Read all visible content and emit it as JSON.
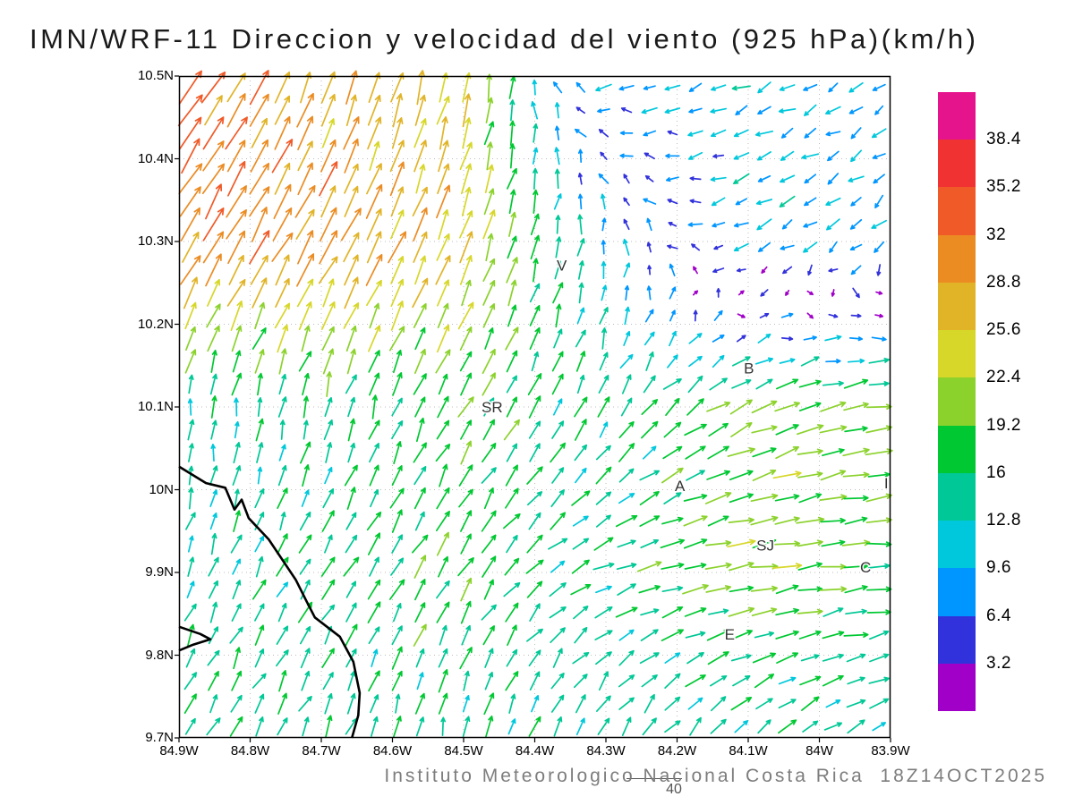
{
  "title": "IMN/WRF-11 Direccion y velocidad del viento (925 hPa)(km/h)",
  "footer": {
    "caption": "Instituto Meteorologico Nacional Costa Rica  18Z14OCT2025",
    "reference_vector_label": "40"
  },
  "chart_data": {
    "type": "quiver",
    "title": "IMN/WRF-11 Direccion y velocidad del viento (925 hPa)(km/h)",
    "variable": "wind direction and speed",
    "level": "925 hPa",
    "units": "km/h",
    "x_axis": {
      "ticks": [
        "84.9W",
        "84.8W",
        "84.7W",
        "84.6W",
        "84.5W",
        "84.4W",
        "84.3W",
        "84.2W",
        "84.1W",
        "84W",
        "83.9W"
      ]
    },
    "y_axis": {
      "ticks": [
        "10.5N",
        "10.4N",
        "10.3N",
        "10.2N",
        "10.1N",
        "10N",
        "9.9N",
        "9.8N",
        "9.7N"
      ]
    },
    "grid": true,
    "reference_speed": 40,
    "colorbar": {
      "levels": [
        3.2,
        6.4,
        9.6,
        12.8,
        16,
        19.2,
        22.4,
        25.6,
        28.8,
        32,
        35.2,
        38.4
      ],
      "colors": [
        "#a000c8",
        "#3232dc",
        "#0096ff",
        "#00c8dc",
        "#00c896",
        "#00c832",
        "#8cd22d",
        "#d7d72a",
        "#e1b428",
        "#eb8c23",
        "#f05a28",
        "#f03232",
        "#e6148c"
      ]
    },
    "wind_grid": {
      "comment": "coarse control field; fx 0-1 spans 84.9W-83.9W, fy 0-1 spans 10.5N-9.7N; u eastward, v northward, km/h",
      "col_fx": [
        0,
        0.2,
        0.4,
        0.6,
        0.8,
        1
      ],
      "row_fy": [
        0,
        0.25,
        0.5,
        0.75,
        1
      ],
      "u": [
        [
          20,
          9,
          5,
          -9,
          -10,
          -7
        ],
        [
          16,
          15,
          9,
          0,
          -9,
          -7
        ],
        [
          1,
          3,
          9,
          7,
          18,
          20
        ],
        [
          4,
          9,
          9,
          14,
          21,
          18
        ],
        [
          9,
          5,
          3,
          7,
          10,
          11
        ]
      ],
      "v": [
        [
          26,
          26,
          25,
          -3,
          -4,
          -5
        ],
        [
          27,
          27,
          24,
          10,
          -5,
          -6
        ],
        [
          13,
          15,
          15,
          14,
          9,
          3
        ],
        [
          13,
          13,
          16,
          5,
          3,
          1
        ],
        [
          13,
          14,
          14,
          13,
          10,
          6
        ]
      ]
    },
    "stations": [
      {
        "label": "V",
        "fx": 0.538,
        "fy": 0.286
      },
      {
        "label": "B",
        "fx": 0.801,
        "fy": 0.441
      },
      {
        "label": "SR",
        "fx": 0.44,
        "fy": 0.5
      },
      {
        "label": "A",
        "fx": 0.704,
        "fy": 0.619
      },
      {
        "label": "SJ",
        "fx": 0.824,
        "fy": 0.709
      },
      {
        "label": "C",
        "fx": 0.965,
        "fy": 0.742
      },
      {
        "label": "E",
        "fx": 0.774,
        "fy": 0.843
      },
      {
        "label": "I",
        "fx": 0.994,
        "fy": 0.615
      }
    ],
    "coastline": [
      [
        [
          0,
          0.59
        ],
        [
          0.038,
          0.615
        ],
        [
          0.065,
          0.622
        ],
        [
          0.078,
          0.655
        ],
        [
          0.088,
          0.64
        ],
        [
          0.098,
          0.668
        ],
        [
          0.126,
          0.7
        ],
        [
          0.164,
          0.761
        ],
        [
          0.179,
          0.793
        ],
        [
          0.191,
          0.818
        ],
        [
          0.226,
          0.847
        ],
        [
          0.245,
          0.885
        ],
        [
          0.254,
          0.932
        ],
        [
          0.252,
          0.966
        ],
        [
          0.243,
          1.0
        ]
      ],
      [
        [
          0,
          0.832
        ],
        [
          0.03,
          0.843
        ],
        [
          0.044,
          0.851
        ],
        [
          0.02,
          0.859
        ],
        [
          0,
          0.868
        ]
      ]
    ]
  }
}
